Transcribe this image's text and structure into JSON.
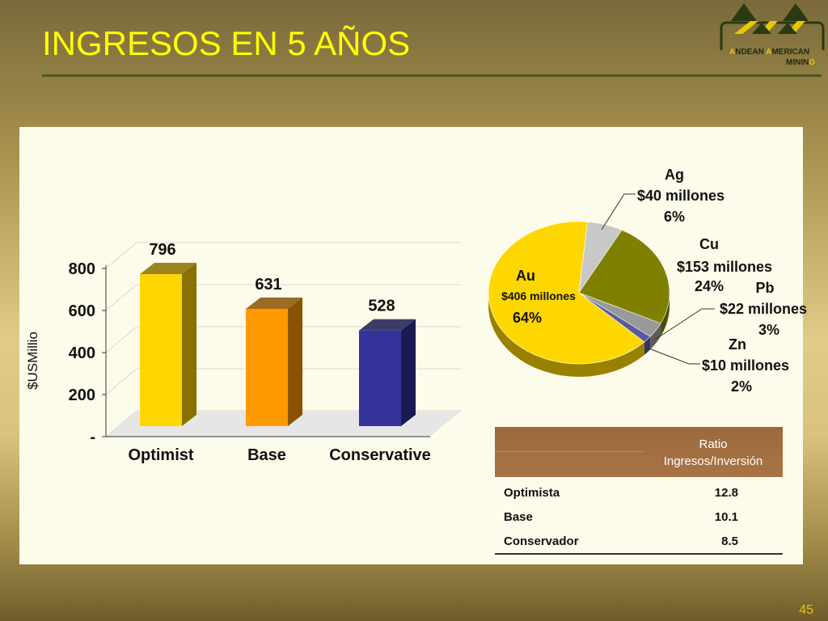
{
  "slide": {
    "title": "INGRESOS EN 5 AÑOS",
    "page_number": "45",
    "logo": {
      "line1": "NDEAN",
      "line1_initial": "A",
      "line1b": "MERICAN",
      "line1b_initial": "A",
      "line2": "MININ",
      "line2_tail": "G"
    }
  },
  "chart_data": [
    {
      "type": "bar",
      "categories": [
        "Optimist",
        "Base",
        "Conservative"
      ],
      "values": [
        796,
        631,
        528
      ],
      "data_labels": [
        "796",
        "631",
        "528"
      ],
      "ylabel": "$USMillio",
      "ylim": [
        0,
        800
      ],
      "yticks": [
        0,
        200,
        400,
        600,
        800
      ],
      "ytick_labels": [
        "-",
        "200",
        "400",
        "600",
        "800"
      ],
      "grid": true,
      "colors": [
        "#ffd700",
        "#ff9900",
        "#333399"
      ],
      "side_colors": [
        "#8a7000",
        "#8a5200",
        "#1a1a50"
      ]
    },
    {
      "type": "pie",
      "slices": [
        {
          "name": "Au",
          "value": 406,
          "amount": "$406 millones",
          "percent": "64%",
          "color": "#ffd700"
        },
        {
          "name": "Ag",
          "value": 40,
          "amount": "$40 millones",
          "percent": "6%",
          "color": "#c8c8c8"
        },
        {
          "name": "Cu",
          "value": 153,
          "amount": "$153 millones",
          "percent": "24%",
          "color": "#808000"
        },
        {
          "name": "Pb",
          "value": 22,
          "amount": "$22 millones",
          "percent": "3%",
          "color": "#999999"
        },
        {
          "name": "Zn",
          "value": 10,
          "amount": "$10 millones",
          "percent": "2%",
          "color": "#5a5a9a"
        }
      ]
    }
  ],
  "ratio_table": {
    "header": [
      "Ratio",
      "Ingresos/Inversión"
    ],
    "rows": [
      {
        "label": "Optimista",
        "value": "12.8"
      },
      {
        "label": "Base",
        "value": "10.1"
      },
      {
        "label": "Conservador",
        "value": "8.5"
      }
    ]
  }
}
